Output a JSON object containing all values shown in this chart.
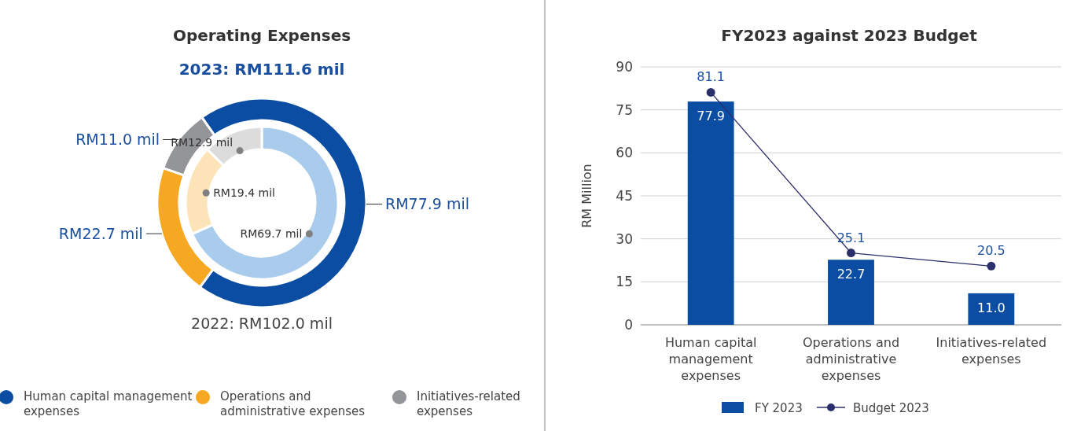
{
  "chart_data": [
    {
      "type": "donut",
      "title": "Operating Expenses",
      "categories": [
        "Human capital management expenses",
        "Operations and administrative expenses",
        "Initiatives-related expenses"
      ],
      "legend": "bottom",
      "annotations": [
        "2022: RM102.0 mil"
      ],
      "series": [
        {
          "name": "2023: RM111.6 mil",
          "colors": [
            "#0a4da2",
            "#f7a823",
            "#939598"
          ],
          "values": [
            77.9,
            22.7,
            11.0
          ],
          "value_labels": [
            "RM77.9 mil",
            "RM22.7 mil",
            "RM11.0 mil"
          ]
        },
        {
          "colors": [
            "#a9cbec",
            "#fde3b8",
            "#dcdcdc"
          ],
          "values": [
            69.7,
            19.4,
            12.9
          ],
          "value_labels": [
            "RM69.7 mil",
            "RM19.4 mil",
            "RM12.9 mil"
          ]
        }
      ]
    },
    {
      "type": "bar",
      "title": "FY2023 against 2023 Budget",
      "ylabel": "RM Million",
      "categories": [
        "Human capital management expenses",
        "Operations and administrative expenses",
        "Initiatives-related expenses"
      ],
      "ylim": [
        0,
        90
      ],
      "yticks": [
        0,
        15,
        30,
        45,
        60,
        75,
        90
      ],
      "grid": "y",
      "legend": "bottom",
      "marker": "circle",
      "series": [
        {
          "name": "FY 2023",
          "type": "bar",
          "color": "#0a4da2",
          "values": [
            77.9,
            22.7,
            11.0
          ],
          "value_labels": [
            "77.9",
            "22.7",
            "11.0"
          ]
        },
        {
          "name": "Budget 2023",
          "type": "line",
          "color": "#2b2f6b",
          "values": [
            81.1,
            25.1,
            20.5
          ],
          "value_labels": [
            "81.1",
            "25.1",
            "20.5"
          ]
        }
      ]
    }
  ]
}
